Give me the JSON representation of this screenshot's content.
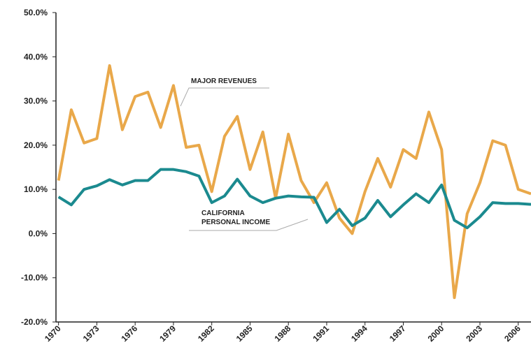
{
  "chart_data": {
    "type": "line",
    "x": [
      1970,
      1971,
      1972,
      1973,
      1974,
      1975,
      1976,
      1977,
      1978,
      1979,
      1980,
      1981,
      1982,
      1983,
      1984,
      1985,
      1986,
      1987,
      1988,
      1989,
      1990,
      1991,
      1992,
      1993,
      1994,
      1995,
      1996,
      1997,
      1998,
      1999,
      2000,
      2001,
      2002,
      2003,
      2004,
      2005,
      2006,
      2007
    ],
    "series": [
      {
        "color": "#e9a84a",
        "values": [
          12,
          28,
          20.5,
          21.5,
          38,
          23.5,
          31,
          32,
          24,
          33.5,
          19.5,
          20,
          9.5,
          22,
          26.5,
          14.5,
          23,
          8,
          22.5,
          12,
          7,
          11.5,
          3.5,
          0,
          9.5,
          17,
          10.5,
          19,
          17,
          27.5,
          19,
          -14.5,
          4.5,
          11.5,
          21,
          20,
          10,
          9
        ]
      },
      {
        "color": "#1b8a8f",
        "values": [
          8.3,
          6.5,
          10,
          10.8,
          12.2,
          11,
          12,
          12,
          14.5,
          14.5,
          14,
          13,
          7,
          8.5,
          12.3,
          8.5,
          7,
          8,
          8.5,
          8.3,
          8.2,
          2.5,
          5.5,
          1.8,
          3.5,
          7.5,
          3.8,
          6.5,
          9,
          7,
          11,
          3,
          1.3,
          3.8,
          7,
          6.8,
          6.8,
          6.6
        ]
      }
    ],
    "annotations": [
      {
        "lines": [
          "MAJOR REVENUES"
        ],
        "color": "#e9a84a"
      },
      {
        "lines": [
          "CALIFORNIA",
          "PERSONAL INCOME"
        ],
        "color": "#1b8a8f"
      }
    ],
    "xlim": [
      1969.8,
      2007
    ],
    "xticks": [
      1970,
      1973,
      1976,
      1979,
      1982,
      1985,
      1988,
      1991,
      1994,
      1997,
      2000,
      2003,
      2006
    ],
    "ylim": [
      -20,
      50
    ],
    "yticks": [
      {
        "value": -20,
        "label": "-20.0%"
      },
      {
        "value": -10,
        "label": "-10.0%"
      },
      {
        "value": 0,
        "label": "0.0%"
      },
      {
        "value": 10,
        "label": "10.0%"
      },
      {
        "value": 20,
        "label": "20.0%"
      },
      {
        "value": 30,
        "label": "30.0%"
      },
      {
        "value": 40,
        "label": "40.0%"
      },
      {
        "value": 50,
        "label": "50.0%"
      }
    ],
    "grid": false
  }
}
